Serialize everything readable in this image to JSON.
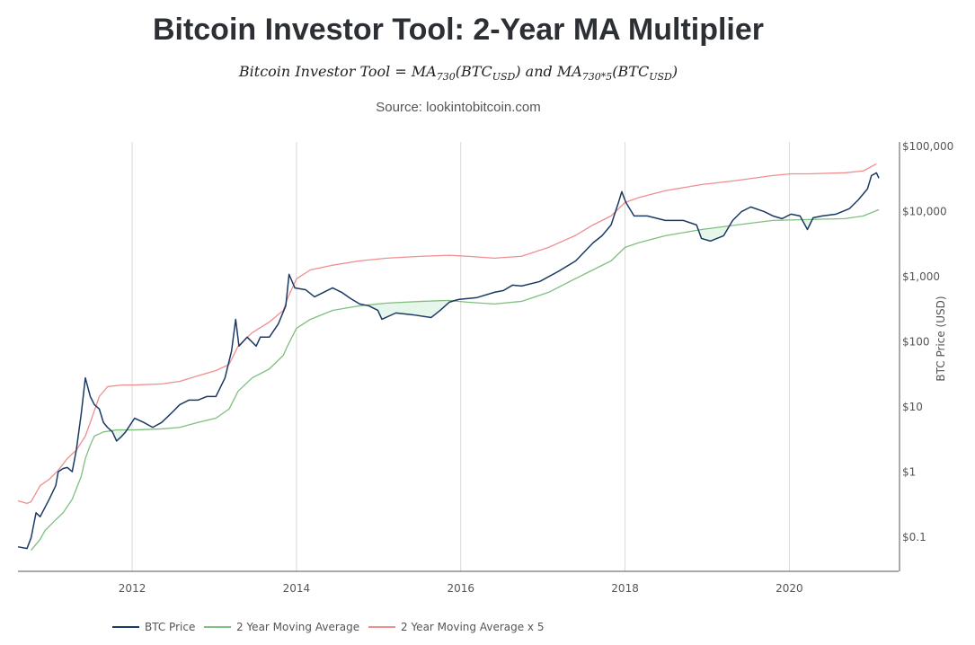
{
  "title": "Bitcoin Investor Tool: 2-Year MA Multiplier",
  "formula": {
    "lhs": "Bitcoin Investor Tool = MA",
    "sub1": "730",
    "mid": "(BTC",
    "sub2": "USD",
    "and": ") and MA",
    "sub3": "730*5",
    "mid2": "(BTC",
    "sub4": "USD",
    "end": ")"
  },
  "source": "Source: lookintobitcoin.com",
  "colors": {
    "price": "#1b3a63",
    "ma": "#7fbf7f",
    "ma5": "#ef8f8f",
    "fill": "#e6f6ea",
    "grid": "#d8d8d8",
    "axis": "#555555"
  },
  "chart_data": {
    "type": "line",
    "title": "Bitcoin Investor Tool: 2-Year MA Multiplier",
    "xlabel": "",
    "ylabel": "BTC Price (USD)",
    "yscale": "log",
    "xlim": [
      2010.61,
      2021.33
    ],
    "ylim": [
      0.029,
      113000
    ],
    "xticks": [
      2012,
      2014,
      2016,
      2018,
      2020
    ],
    "xtick_labels": [
      "2012",
      "2014",
      "2016",
      "2018",
      "2020"
    ],
    "yticks": [
      0.1,
      1,
      10,
      100,
      1000,
      10000,
      100000
    ],
    "ytick_labels": [
      "$0.1",
      "$1",
      "$10",
      "$100",
      "$1,000",
      "$10,000",
      "$100,000"
    ],
    "legend": "bottom",
    "legend_labels": [
      "BTC Price",
      "2 Year Moving Average",
      "2 Year Moving Average x 5"
    ],
    "series": [
      {
        "name": "BTC Price",
        "points": [
          [
            2010.61,
            0.069
          ],
          [
            2010.72,
            0.065
          ],
          [
            2010.77,
            0.095
          ],
          [
            2010.83,
            0.23
          ],
          [
            2010.88,
            0.2
          ],
          [
            2010.99,
            0.37
          ],
          [
            2011.07,
            0.6
          ],
          [
            2011.1,
            0.98
          ],
          [
            2011.16,
            1.1
          ],
          [
            2011.21,
            1.14
          ],
          [
            2011.27,
            0.98
          ],
          [
            2011.32,
            2.1
          ],
          [
            2011.38,
            7.6
          ],
          [
            2011.43,
            27
          ],
          [
            2011.49,
            14
          ],
          [
            2011.54,
            10.5
          ],
          [
            2011.6,
            9
          ],
          [
            2011.65,
            5.6
          ],
          [
            2011.7,
            4.7
          ],
          [
            2011.76,
            4.0
          ],
          [
            2011.81,
            2.9
          ],
          [
            2011.87,
            3.4
          ],
          [
            2011.92,
            4.0
          ],
          [
            2012.03,
            6.5
          ],
          [
            2012.14,
            5.6
          ],
          [
            2012.25,
            4.7
          ],
          [
            2012.36,
            5.6
          ],
          [
            2012.47,
            7.6
          ],
          [
            2012.58,
            10.5
          ],
          [
            2012.69,
            12.3
          ],
          [
            2012.8,
            12.3
          ],
          [
            2012.91,
            14
          ],
          [
            2013.02,
            14
          ],
          [
            2013.13,
            27
          ],
          [
            2013.21,
            70
          ],
          [
            2013.26,
            214
          ],
          [
            2013.3,
            83
          ],
          [
            2013.4,
            114
          ],
          [
            2013.51,
            83
          ],
          [
            2013.56,
            114
          ],
          [
            2013.67,
            114
          ],
          [
            2013.78,
            183
          ],
          [
            2013.87,
            345
          ],
          [
            2013.91,
            1050
          ],
          [
            2013.98,
            650
          ],
          [
            2014.11,
            610
          ],
          [
            2014.22,
            474
          ],
          [
            2014.33,
            556
          ],
          [
            2014.44,
            650
          ],
          [
            2014.55,
            556
          ],
          [
            2014.66,
            445
          ],
          [
            2014.77,
            368
          ],
          [
            2014.88,
            345
          ],
          [
            2014.99,
            294
          ],
          [
            2015.04,
            214
          ],
          [
            2015.21,
            268
          ],
          [
            2015.42,
            251
          ],
          [
            2015.64,
            228
          ],
          [
            2015.75,
            294
          ],
          [
            2015.86,
            392
          ],
          [
            2015.97,
            431
          ],
          [
            2016.19,
            459
          ],
          [
            2016.41,
            556
          ],
          [
            2016.52,
            592
          ],
          [
            2016.63,
            716
          ],
          [
            2016.74,
            694
          ],
          [
            2016.96,
            813
          ],
          [
            2017.18,
            1150
          ],
          [
            2017.4,
            1690
          ],
          [
            2017.61,
            3190
          ],
          [
            2017.72,
            4110
          ],
          [
            2017.83,
            6020
          ],
          [
            2017.92,
            13300
          ],
          [
            2017.96,
            19500
          ],
          [
            2018.01,
            13300
          ],
          [
            2018.11,
            8270
          ],
          [
            2018.27,
            8270
          ],
          [
            2018.49,
            7050
          ],
          [
            2018.71,
            7050
          ],
          [
            2018.87,
            6020
          ],
          [
            2018.93,
            3730
          ],
          [
            2019.04,
            3400
          ],
          [
            2019.2,
            4110
          ],
          [
            2019.31,
            7050
          ],
          [
            2019.42,
            9680
          ],
          [
            2019.53,
            11350
          ],
          [
            2019.69,
            9680
          ],
          [
            2019.8,
            8270
          ],
          [
            2019.91,
            7510
          ],
          [
            2020.02,
            8810
          ],
          [
            2020.13,
            8270
          ],
          [
            2020.22,
            5120
          ],
          [
            2020.29,
            7760
          ],
          [
            2020.4,
            8270
          ],
          [
            2020.57,
            8810
          ],
          [
            2020.73,
            10660
          ],
          [
            2020.84,
            14650
          ],
          [
            2020.95,
            21400
          ],
          [
            2021.0,
            34500
          ],
          [
            2021.06,
            37900
          ],
          [
            2021.09,
            31400
          ]
        ]
      },
      {
        "name": "2 Year Moving Average",
        "points": [
          [
            2010.77,
            0.061
          ],
          [
            2010.88,
            0.09
          ],
          [
            2010.94,
            0.123
          ],
          [
            2011.05,
            0.17
          ],
          [
            2011.16,
            0.23
          ],
          [
            2011.27,
            0.37
          ],
          [
            2011.38,
            0.83
          ],
          [
            2011.43,
            1.56
          ],
          [
            2011.49,
            2.5
          ],
          [
            2011.54,
            3.45
          ],
          [
            2011.65,
            4.0
          ],
          [
            2011.81,
            4.3
          ],
          [
            2012.03,
            4.3
          ],
          [
            2012.36,
            4.45
          ],
          [
            2012.58,
            4.7
          ],
          [
            2012.8,
            5.6
          ],
          [
            2013.02,
            6.5
          ],
          [
            2013.18,
            9
          ],
          [
            2013.29,
            16.9
          ],
          [
            2013.46,
            27
          ],
          [
            2013.67,
            37
          ],
          [
            2013.84,
            60
          ],
          [
            2013.89,
            83
          ],
          [
            2014.0,
            156
          ],
          [
            2014.17,
            214
          ],
          [
            2014.44,
            294
          ],
          [
            2014.77,
            345
          ],
          [
            2015.1,
            380
          ],
          [
            2015.53,
            404
          ],
          [
            2015.86,
            418
          ],
          [
            2016.08,
            392
          ],
          [
            2016.41,
            368
          ],
          [
            2016.74,
            404
          ],
          [
            2017.07,
            556
          ],
          [
            2017.39,
            895
          ],
          [
            2017.61,
            1230
          ],
          [
            2017.83,
            1690
          ],
          [
            2018.0,
            2720
          ],
          [
            2018.16,
            3190
          ],
          [
            2018.49,
            4110
          ],
          [
            2018.93,
            5120
          ],
          [
            2019.36,
            6020
          ],
          [
            2019.8,
            7050
          ],
          [
            2020.24,
            7280
          ],
          [
            2020.68,
            7510
          ],
          [
            2020.9,
            8270
          ],
          [
            2021.09,
            10330
          ]
        ]
      },
      {
        "name": "2 Year Moving Average x 5",
        "points": [
          [
            2010.61,
            0.35
          ],
          [
            2010.72,
            0.32
          ],
          [
            2010.77,
            0.34
          ],
          [
            2010.88,
            0.6
          ],
          [
            2010.99,
            0.75
          ],
          [
            2011.1,
            1.03
          ],
          [
            2011.21,
            1.56
          ],
          [
            2011.32,
            2.1
          ],
          [
            2011.43,
            3.45
          ],
          [
            2011.49,
            5.6
          ],
          [
            2011.6,
            14
          ],
          [
            2011.7,
            19.8
          ],
          [
            2011.87,
            21
          ],
          [
            2012.03,
            21
          ],
          [
            2012.36,
            21.8
          ],
          [
            2012.58,
            23.9
          ],
          [
            2012.8,
            29
          ],
          [
            2013.02,
            35
          ],
          [
            2013.18,
            43.6
          ],
          [
            2013.29,
            83
          ],
          [
            2013.46,
            133
          ],
          [
            2013.67,
            195
          ],
          [
            2013.84,
            294
          ],
          [
            2013.89,
            445
          ],
          [
            2014.0,
            895
          ],
          [
            2014.17,
            1230
          ],
          [
            2014.44,
            1450
          ],
          [
            2014.77,
            1690
          ],
          [
            2015.1,
            1860
          ],
          [
            2015.53,
            1990
          ],
          [
            2015.86,
            2060
          ],
          [
            2016.08,
            1990
          ],
          [
            2016.41,
            1860
          ],
          [
            2016.74,
            1990
          ],
          [
            2017.07,
            2720
          ],
          [
            2017.39,
            4110
          ],
          [
            2017.61,
            6020
          ],
          [
            2017.83,
            8270
          ],
          [
            2018.0,
            13300
          ],
          [
            2018.16,
            15700
          ],
          [
            2018.49,
            20200
          ],
          [
            2018.93,
            25000
          ],
          [
            2019.36,
            29000
          ],
          [
            2019.8,
            34500
          ],
          [
            2020.02,
            36600
          ],
          [
            2020.24,
            36600
          ],
          [
            2020.68,
            38000
          ],
          [
            2020.9,
            40600
          ],
          [
            2021.06,
            52000
          ]
        ]
      }
    ]
  }
}
